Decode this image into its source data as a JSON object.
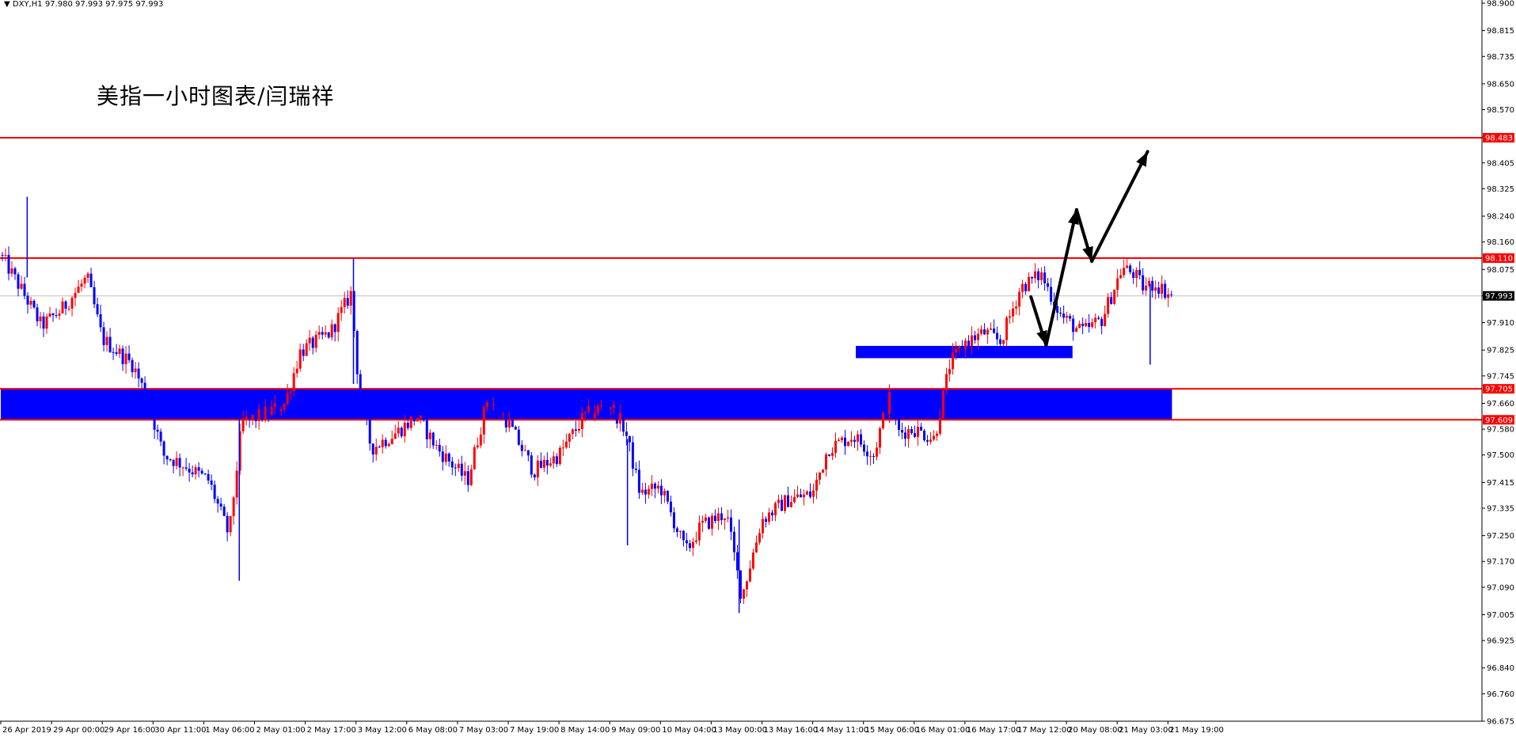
{
  "symbol_info": {
    "symbol": "DXY,H1",
    "ohlc": "97.980 97.993 97.975 97.993"
  },
  "chart_title": "美指一小时图表/闫瑞祥",
  "chart_data": {
    "type": "candlestick",
    "title": "美指一小时图表/闫瑞祥",
    "ylim": [
      96.675,
      98.9
    ],
    "y_ticks": [
      "98.900",
      "98.815",
      "98.735",
      "98.650",
      "98.570",
      "98.485",
      "98.405",
      "98.325",
      "98.240",
      "98.160",
      "98.075",
      "97.993",
      "97.910",
      "97.825",
      "97.745",
      "97.660",
      "97.580",
      "97.500",
      "97.415",
      "97.335",
      "97.250",
      "97.170",
      "97.090",
      "97.005",
      "96.925",
      "96.840",
      "96.760",
      "96.675"
    ],
    "x_ticks": [
      "26 Apr 2019",
      "29 Apr 00:00",
      "29 Apr 16:00",
      "30 Apr 11:00",
      "1 May 06:00",
      "2 May 01:00",
      "2 May 17:00",
      "3 May 12:00",
      "6 May 08:00",
      "7 May 03:00",
      "7 May 19:00",
      "8 May 14:00",
      "9 May 09:00",
      "10 May 04:00",
      "13 May 00:00",
      "13 May 16:00",
      "14 May 11:00",
      "15 May 06:00",
      "16 May 01:00",
      "16 May 17:00",
      "17 May 12:00",
      "20 May 08:00",
      "21 May 03:00",
      "21 May 19:00"
    ],
    "x_ticks_count": 24,
    "current_price": "97.993",
    "horizontal_lines": [
      {
        "price": 98.483,
        "label": "98.483",
        "color": "#ff0000"
      },
      {
        "price": 98.11,
        "label": "98.110",
        "color": "#ff0000"
      },
      {
        "price": 97.705,
        "label": "97.705",
        "color": "#ff0000"
      },
      {
        "price": 97.609,
        "label": "97.609",
        "color": "#ff0000"
      }
    ],
    "zones": [
      {
        "name": "support-zone-wide",
        "from_price": 97.609,
        "to_price": 97.705,
        "x_from": 0,
        "x_to": 23.08,
        "color": "#0000ff"
      },
      {
        "name": "support-zone-short",
        "from_price": 97.8,
        "to_price": 97.838,
        "x_from": 16.85,
        "x_to": 21.12,
        "color": "#0000ff"
      }
    ],
    "projection_arrow": [
      {
        "x": 20.3,
        "price": 97.99
      },
      {
        "x": 20.6,
        "price": 97.84
      },
      {
        "x": 21.2,
        "price": 98.26
      },
      {
        "x": 21.5,
        "price": 98.1
      },
      {
        "x": 22.6,
        "price": 98.44
      }
    ],
    "anchors": [
      {
        "x": 0.0,
        "price": 98.12
      },
      {
        "x": 0.45,
        "price": 98.0
      },
      {
        "x": 0.8,
        "price": 97.9
      },
      {
        "x": 1.2,
        "price": 97.95
      },
      {
        "x": 1.7,
        "price": 98.05
      },
      {
        "x": 2.0,
        "price": 97.86
      },
      {
        "x": 2.6,
        "price": 97.78
      },
      {
        "x": 2.9,
        "price": 97.67
      },
      {
        "x": 3.2,
        "price": 97.5
      },
      {
        "x": 3.6,
        "price": 97.47
      },
      {
        "x": 4.1,
        "price": 97.42
      },
      {
        "x": 4.5,
        "price": 97.25
      },
      {
        "x": 4.75,
        "price": 97.6
      },
      {
        "x": 5.1,
        "price": 97.62
      },
      {
        "x": 5.6,
        "price": 97.66
      },
      {
        "x": 5.9,
        "price": 97.82
      },
      {
        "x": 6.5,
        "price": 97.88
      },
      {
        "x": 6.9,
        "price": 98.0
      },
      {
        "x": 7.05,
        "price": 97.72
      },
      {
        "x": 7.3,
        "price": 97.52
      },
      {
        "x": 7.8,
        "price": 97.57
      },
      {
        "x": 8.2,
        "price": 97.62
      },
      {
        "x": 8.6,
        "price": 97.52
      },
      {
        "x": 9.2,
        "price": 97.42
      },
      {
        "x": 9.6,
        "price": 97.68
      },
      {
        "x": 10.0,
        "price": 97.6
      },
      {
        "x": 10.5,
        "price": 97.45
      },
      {
        "x": 11.0,
        "price": 97.5
      },
      {
        "x": 11.5,
        "price": 97.62
      },
      {
        "x": 12.0,
        "price": 97.66
      },
      {
        "x": 12.3,
        "price": 97.58
      },
      {
        "x": 12.6,
        "price": 97.38
      },
      {
        "x": 13.0,
        "price": 97.4
      },
      {
        "x": 13.5,
        "price": 97.2
      },
      {
        "x": 13.8,
        "price": 97.28
      },
      {
        "x": 14.3,
        "price": 97.32
      },
      {
        "x": 14.6,
        "price": 97.06
      },
      {
        "x": 15.0,
        "price": 97.3
      },
      {
        "x": 15.5,
        "price": 97.36
      },
      {
        "x": 16.0,
        "price": 97.38
      },
      {
        "x": 16.3,
        "price": 97.52
      },
      {
        "x": 16.8,
        "price": 97.56
      },
      {
        "x": 17.2,
        "price": 97.5
      },
      {
        "x": 17.5,
        "price": 97.68
      },
      {
        "x": 17.7,
        "price": 97.57
      },
      {
        "x": 18.0,
        "price": 97.58
      },
      {
        "x": 18.4,
        "price": 97.55
      },
      {
        "x": 18.7,
        "price": 97.78
      },
      {
        "x": 19.0,
        "price": 97.85
      },
      {
        "x": 19.4,
        "price": 97.88
      },
      {
        "x": 19.7,
        "price": 97.85
      },
      {
        "x": 20.1,
        "price": 98.02
      },
      {
        "x": 20.5,
        "price": 98.06
      },
      {
        "x": 20.9,
        "price": 97.93
      },
      {
        "x": 21.3,
        "price": 97.88
      },
      {
        "x": 21.7,
        "price": 97.92
      },
      {
        "x": 22.1,
        "price": 98.08
      },
      {
        "x": 22.35,
        "price": 98.06
      },
      {
        "x": 22.5,
        "price": 98.02
      },
      {
        "x": 22.75,
        "price": 98.03
      },
      {
        "x": 23.1,
        "price": 97.99
      }
    ],
    "spike_wicks": [
      {
        "x": 0.52,
        "high": 98.3,
        "low": 98.05
      },
      {
        "x": 4.7,
        "high": 97.62,
        "low": 97.11
      },
      {
        "x": 6.95,
        "high": 98.11,
        "low": 97.72
      },
      {
        "x": 22.65,
        "high": 98.03,
        "low": 97.78
      },
      {
        "x": 12.35,
        "high": 97.55,
        "low": 97.22
      },
      {
        "x": 14.55,
        "high": 97.3,
        "low": 97.01
      }
    ],
    "colors": {
      "bull": "#ff0000",
      "bear": "#0000ff",
      "axis": "#000000",
      "current_price_line": "#c0c0c0",
      "label_bg_red": "#ff0000",
      "label_bg_current": "#000000"
    }
  }
}
